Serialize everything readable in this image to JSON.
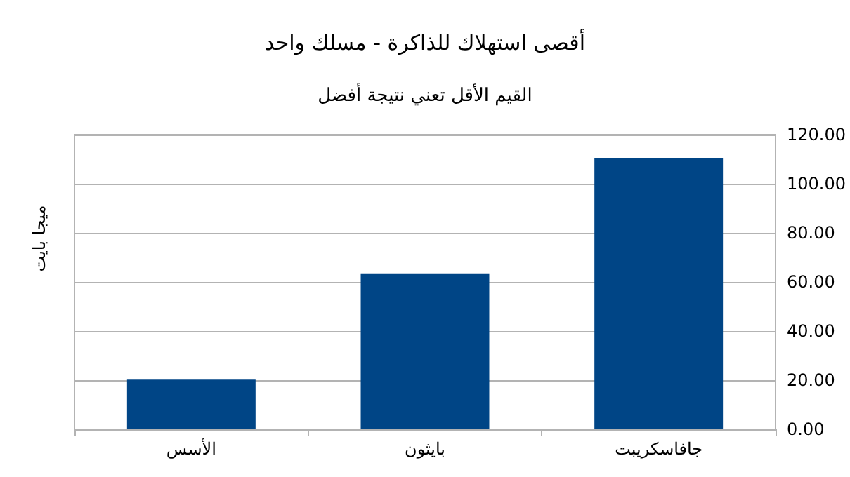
{
  "chart_data": {
    "type": "bar",
    "title": "أقصى استهلاك للذاكرة - مسلك واحد",
    "subtitle": "القيم الأقل تعني نتيجة أفضل",
    "ylabel": "ميجا بايت",
    "categories": [
      "الأسس",
      "بايثون",
      "جافاسكريبت"
    ],
    "values": [
      20.2,
      63.5,
      110.6
    ],
    "color": "#004586",
    "ylim": [
      0,
      120
    ],
    "yticks": [
      {
        "value": 0,
        "label": "0.00"
      },
      {
        "value": 20,
        "label": "20.00"
      },
      {
        "value": 40,
        "label": "40.00"
      },
      {
        "value": 60,
        "label": "60.00"
      },
      {
        "value": 80,
        "label": "80.00"
      },
      {
        "value": 100,
        "label": "100.00"
      },
      {
        "value": 120,
        "label": "120.00"
      }
    ],
    "grid": "y"
  }
}
